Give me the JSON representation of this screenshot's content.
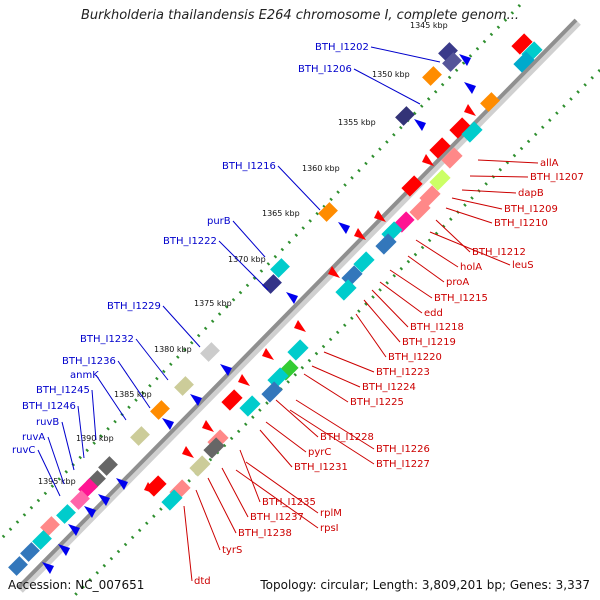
{
  "title": "Burkholderia thailandensis E264 chromosome I, complete genom...",
  "accession": "Accession: NC_007651",
  "topology": "Topology: circular; Length: 3,809,201 bp; Genes: 3,337",
  "colors": {
    "backbone": "#8f8f8f",
    "ticks": "#2f8f2f",
    "forward_label": "#0000cc",
    "reverse_label": "#cc0000"
  },
  "ticks": [
    "1345 kbp",
    "1350 kbp",
    "1355 kbp",
    "1360 kbp",
    "1365 kbp",
    "1370 kbp",
    "1375 kbp",
    "1380 kbp",
    "1385 kbp",
    "1390 kbp",
    "1395 kbp"
  ],
  "forward_labels": [
    "BTH_I1202",
    "BTH_I1206",
    "BTH_I1216",
    "purB",
    "BTH_I1222",
    "BTH_I1229",
    "BTH_I1232",
    "BTH_I1236",
    "anmK",
    "BTH_I1245",
    "BTH_I1246",
    "ruvB",
    "ruvA",
    "ruvC"
  ],
  "reverse_labels": [
    "allA",
    "BTH_I1207",
    "dapB",
    "BTH_I1209",
    "BTH_I1210",
    "BTH_I1212",
    "leuS",
    "holA",
    "proA",
    "BTH_I1215",
    "edd",
    "BTH_I1218",
    "BTH_I1219",
    "BTH_I1220",
    "BTH_I1223",
    "BTH_I1224",
    "BTH_I1225",
    "BTH_I1228",
    "BTH_I1226",
    "BTH_I1227",
    "pyrC",
    "BTH_I1231",
    "BTH_I1235",
    "rplM",
    "rpsI",
    "BTH_I1237",
    "BTH_I1238",
    "tyrS",
    "dtd"
  ]
}
